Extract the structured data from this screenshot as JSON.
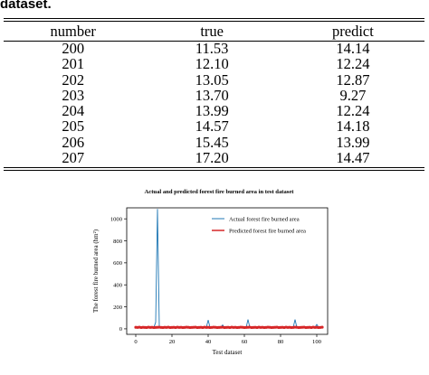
{
  "caption_fragment": "dataset.",
  "table": {
    "headers": [
      "number",
      "true",
      "predict"
    ],
    "rows": [
      [
        "200",
        "11.53",
        "14.14"
      ],
      [
        "201",
        "12.10",
        "12.24"
      ],
      [
        "202",
        "13.05",
        "12.87"
      ],
      [
        "203",
        "13.70",
        "9.27"
      ],
      [
        "204",
        "13.99",
        "12.24"
      ],
      [
        "205",
        "14.57",
        "14.18"
      ],
      [
        "206",
        "15.45",
        "13.99"
      ],
      [
        "207",
        "17.20",
        "14.47"
      ]
    ]
  },
  "chart_data": {
    "type": "line",
    "title": "Actual and predicted forest fire burned area in test dataset",
    "xlabel": "Test dataset",
    "ylabel": "The forest fire burned area (hm²)",
    "xlim": [
      -5,
      106
    ],
    "ylim": [
      -50,
      1100
    ],
    "xticks": [
      "0",
      "20",
      "40",
      "60",
      "80",
      "100"
    ],
    "yticks": [
      "0",
      "200",
      "400",
      "600",
      "800",
      "1000"
    ],
    "legend_position": "top-right",
    "series": [
      {
        "name": "Actual forest fire burned area",
        "color": "#1f77b4",
        "x": [
          0,
          1,
          2,
          3,
          4,
          5,
          6,
          7,
          8,
          9,
          10,
          11,
          12,
          13,
          14,
          15,
          16,
          17,
          18,
          19,
          20,
          21,
          22,
          23,
          24,
          25,
          26,
          27,
          28,
          29,
          30,
          31,
          32,
          33,
          34,
          35,
          36,
          37,
          38,
          39,
          40,
          41,
          42,
          43,
          44,
          45,
          46,
          47,
          48,
          49,
          50,
          51,
          52,
          53,
          54,
          55,
          56,
          57,
          58,
          59,
          60,
          61,
          62,
          63,
          64,
          65,
          66,
          67,
          68,
          69,
          70,
          71,
          72,
          73,
          74,
          75,
          76,
          77,
          78,
          79,
          80,
          81,
          82,
          83,
          84,
          85,
          86,
          87,
          88,
          89,
          90,
          91,
          92,
          93,
          94,
          95,
          96,
          97,
          98,
          99,
          100,
          101,
          102,
          103
        ],
        "y": [
          14,
          15,
          13,
          12,
          15,
          10,
          12,
          14,
          11,
          15,
          13,
          60,
          1090,
          20,
          13,
          12,
          15,
          11,
          12,
          14,
          10,
          13,
          12,
          15,
          11,
          12,
          14,
          10,
          12,
          13,
          11,
          14,
          12,
          13,
          15,
          11,
          12,
          14,
          10,
          13,
          80,
          15,
          12,
          11,
          14,
          13,
          12,
          15,
          35,
          12,
          13,
          11,
          14,
          12,
          13,
          10,
          15,
          12,
          13,
          14,
          11,
          12,
          85,
          13,
          12,
          14,
          11,
          15,
          12,
          13,
          10,
          14,
          12,
          13,
          11,
          15,
          12,
          14,
          13,
          12,
          11,
          15,
          13,
          12,
          14,
          11,
          13,
          12,
          85,
          12,
          14,
          13,
          11,
          15,
          12,
          13,
          10,
          14,
          12,
          13,
          40,
          15,
          12,
          14
        ]
      },
      {
        "name": "Predicted forest fire burned area",
        "color": "#d62728",
        "x": [
          0,
          1,
          2,
          3,
          4,
          5,
          6,
          7,
          8,
          9,
          10,
          11,
          12,
          13,
          14,
          15,
          16,
          17,
          18,
          19,
          20,
          21,
          22,
          23,
          24,
          25,
          26,
          27,
          28,
          29,
          30,
          31,
          32,
          33,
          34,
          35,
          36,
          37,
          38,
          39,
          40,
          41,
          42,
          43,
          44,
          45,
          46,
          47,
          48,
          49,
          50,
          51,
          52,
          53,
          54,
          55,
          56,
          57,
          58,
          59,
          60,
          61,
          62,
          63,
          64,
          65,
          66,
          67,
          68,
          69,
          70,
          71,
          72,
          73,
          74,
          75,
          76,
          77,
          78,
          79,
          80,
          81,
          82,
          83,
          84,
          85,
          86,
          87,
          88,
          89,
          90,
          91,
          92,
          93,
          94,
          95,
          96,
          97,
          98,
          99,
          100,
          101,
          102,
          103
        ],
        "y": [
          14,
          13,
          15,
          12,
          14,
          13,
          12,
          15,
          13,
          14,
          12,
          13,
          14,
          15,
          13,
          12,
          14,
          13,
          15,
          12,
          13,
          14,
          12,
          15,
          13,
          14,
          12,
          13,
          15,
          14,
          12,
          13,
          14,
          15,
          12,
          13,
          14,
          12,
          15,
          13,
          14,
          12,
          13,
          15,
          14,
          12,
          13,
          14,
          15,
          12,
          13,
          14,
          12,
          15,
          13,
          14,
          12,
          13,
          15,
          14,
          12,
          13,
          14,
          15,
          12,
          13,
          14,
          12,
          15,
          13,
          14,
          12,
          13,
          15,
          14,
          12,
          13,
          14,
          15,
          12,
          13,
          14,
          12,
          15,
          13,
          14,
          12,
          13,
          15,
          14,
          12,
          13,
          14,
          15,
          12,
          13,
          14,
          12,
          15,
          13,
          14,
          12,
          13,
          15
        ]
      }
    ]
  }
}
